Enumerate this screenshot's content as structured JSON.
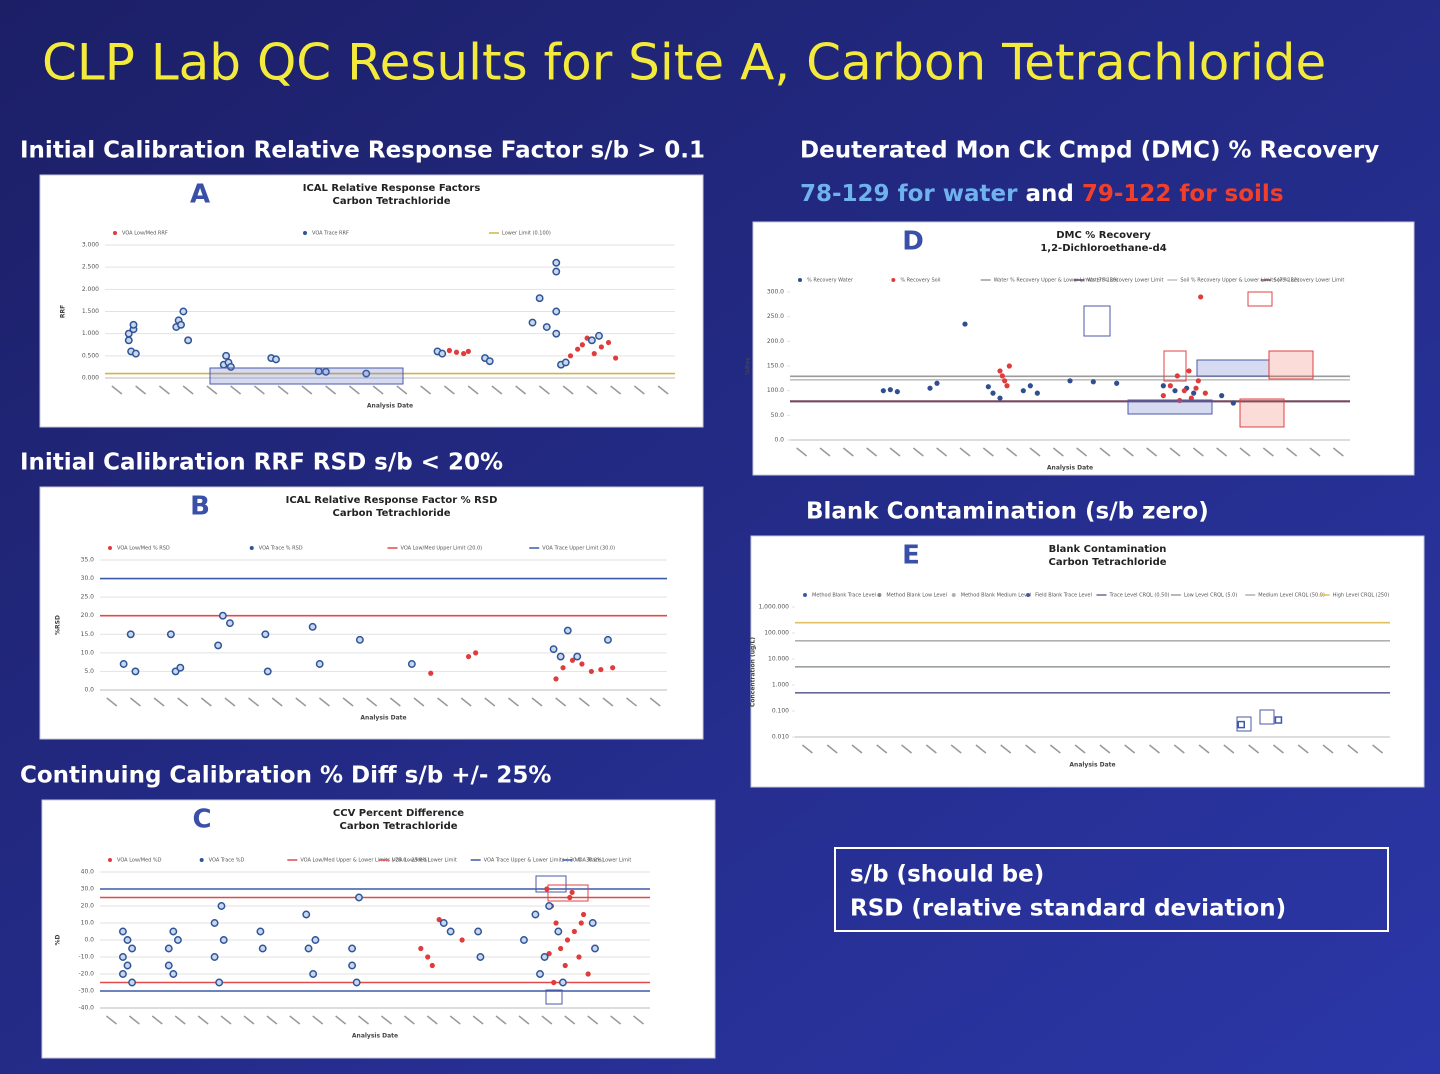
{
  "title": "CLP Lab QC Results for Site A, Carbon Tetrachloride",
  "panels": [
    {
      "heading": "Initial Calibration Relative Response Factor s/b > 0.1",
      "letter": "A",
      "chart_data": {
        "type": "scatter",
        "title": "ICAL Relative Response Factors",
        "subtitle": "Carbon Tetrachloride",
        "x_label": "Analysis Date",
        "y_label": "RRF",
        "xlim": [
          0,
          24
        ],
        "ylim": [
          0,
          3
        ],
        "yticks": [
          {
            "value": 0,
            "label": "0.000"
          },
          {
            "value": 0.5,
            "label": "0.500"
          },
          {
            "value": 1,
            "label": "1.000"
          },
          {
            "value": 1.5,
            "label": "1.500"
          },
          {
            "value": 2,
            "label": "2.000"
          },
          {
            "value": 2.5,
            "label": "2.500"
          },
          {
            "value": 3,
            "label": "3.000"
          }
        ],
        "grid": true,
        "series": [
          {
            "name": "VOA Low/Med RRF",
            "color": "#e03c3c",
            "marker": "dot",
            "x": [
              14.5,
              14.8,
              15.1,
              15.3,
              19.6,
              19.9,
              20.1,
              20.3,
              20.6,
              20.9,
              21.2,
              21.5
            ],
            "values": [
              0.62,
              0.58,
              0.55,
              0.6,
              0.5,
              0.65,
              0.75,
              0.9,
              0.55,
              0.7,
              0.8,
              0.45
            ]
          },
          {
            "name": "VOA Trace RRF",
            "color": "#2f5597",
            "marker": "ring",
            "x": [
              1,
              1.1,
              1.2,
              1.3,
              1,
              1.2,
              3,
              3.1,
              3.2,
              3.3,
              3.5,
              5,
              5.1,
              5.2,
              5.3,
              7,
              7.2,
              9,
              9.3,
              11,
              14,
              14.2,
              16,
              16.2,
              18,
              18.3,
              18.6,
              19,
              19,
              19,
              19,
              19.2,
              19.4,
              20.5,
              20.8
            ],
            "values": [
              1.0,
              0.6,
              1.1,
              0.55,
              0.85,
              1.2,
              1.15,
              1.3,
              1.2,
              1.5,
              0.85,
              0.3,
              0.5,
              0.35,
              0.25,
              0.45,
              0.42,
              0.15,
              0.14,
              0.1,
              0.6,
              0.55,
              0.45,
              0.38,
              1.25,
              1.8,
              1.15,
              2.4,
              2.6,
              1.5,
              1.0,
              0.3,
              0.35,
              0.85,
              0.95
            ]
          }
        ],
        "limits": [
          {
            "name": "Lower Limit (0.100)",
            "value": 0.1,
            "color": "#d4b44a"
          }
        ]
      }
    },
    {
      "heading": "Initial Calibration RRF RSD s/b < 20%",
      "letter": "B",
      "chart_data": {
        "type": "scatter",
        "title": "ICAL Relative Response Factor % RSD",
        "subtitle": "Carbon Tetrachloride",
        "x_label": "Analysis Date",
        "y_label": "%RSD",
        "xlim": [
          0,
          24
        ],
        "ylim": [
          0,
          35
        ],
        "yticks": [
          {
            "value": 0,
            "label": "0.0"
          },
          {
            "value": 5,
            "label": "5.0"
          },
          {
            "value": 10,
            "label": "10.0"
          },
          {
            "value": 15,
            "label": "15.0"
          },
          {
            "value": 20,
            "label": "20.0"
          },
          {
            "value": 25,
            "label": "25.0"
          },
          {
            "value": 30,
            "label": "30.0"
          },
          {
            "value": 35,
            "label": "35.0"
          }
        ],
        "grid": true,
        "series": [
          {
            "name": "VOA Low/Med % RSD",
            "color": "#e03c3c",
            "marker": "dot",
            "x": [
              14,
              15.6,
              15.9,
              19.3,
              19.6,
              20,
              20.4,
              20.8,
              21.2,
              21.7
            ],
            "values": [
              4.5,
              9,
              10,
              3,
              6,
              8,
              7,
              5,
              5.5,
              6
            ]
          },
          {
            "name": "VOA Trace % RSD",
            "color": "#2f5597",
            "marker": "ring",
            "x": [
              1,
              1.3,
              1.5,
              3,
              3.2,
              3.4,
              5,
              5.2,
              5.5,
              7,
              7.1,
              9,
              9.3,
              11,
              13.2,
              19.2,
              19.5,
              19.8,
              20.2,
              21.5
            ],
            "values": [
              7,
              15,
              5,
              15,
              5,
              6,
              12,
              20,
              18,
              15,
              5,
              17,
              7,
              13.5,
              7,
              11,
              9,
              16,
              9,
              13.5
            ]
          }
        ],
        "limits": [
          {
            "name": "VOA Low/Med Upper Limit (20.0)",
            "value": 20,
            "color": "#e04a4a"
          },
          {
            "name": "VOA Trace Upper Limit (30.0)",
            "value": 30,
            "color": "#3d5aa8"
          }
        ]
      }
    },
    {
      "heading": "Continuing Calibration % Diff s/b +/- 25%",
      "letter": "C",
      "chart_data": {
        "type": "scatter",
        "title": "CCV Percent Difference",
        "subtitle": "Carbon Tetrachloride",
        "x_label": "Analysis Date",
        "y_label": "%D",
        "xlim": [
          0,
          24
        ],
        "ylim": [
          -40,
          40
        ],
        "yticks": [
          {
            "value": -40,
            "label": "-40.0"
          },
          {
            "value": -30,
            "label": "-30.0"
          },
          {
            "value": -20,
            "label": "-20.0"
          },
          {
            "value": -10,
            "label": "-10.0"
          },
          {
            "value": 0,
            "label": "0.0"
          },
          {
            "value": 10,
            "label": "10.0"
          },
          {
            "value": 20,
            "label": "20.0"
          },
          {
            "value": 30,
            "label": "30.0"
          },
          {
            "value": 40,
            "label": "40.0"
          }
        ],
        "grid": true,
        "series": [
          {
            "name": "VOA Low/Med %D",
            "color": "#e03c3c",
            "marker": "dot",
            "x": [
              14,
              14.3,
              14.5,
              14.8,
              15.8,
              19.5,
              19.7,
              19.9,
              20.1,
              20.3,
              20.5,
              20.7,
              20.9,
              21.1,
              21.3,
              19.8,
              20.4,
              21,
              20.6,
              19.6
            ],
            "values": [
              -5,
              -10,
              -15,
              12,
              0,
              30,
              20,
              10,
              -5,
              -15,
              25,
              5,
              -10,
              15,
              -20,
              -25,
              0,
              10,
              28,
              -8
            ]
          },
          {
            "name": "VOA Trace %D",
            "color": "#2f5597",
            "marker": "ring",
            "x": [
              1,
              1,
              1,
              1.2,
              1.2,
              1.4,
              1.4,
              3,
              3,
              3.2,
              3.2,
              3.4,
              5,
              5,
              5.2,
              5.3,
              5.4,
              7,
              7.1,
              9,
              9.1,
              9.3,
              9.4,
              11,
              11,
              11.2,
              11.3,
              15,
              15.3,
              16.5,
              16.6,
              18.5,
              19,
              19.2,
              19.4,
              19.6,
              20,
              20.2,
              21.5,
              21.6
            ],
            "values": [
              -10,
              -20,
              5,
              -15,
              0,
              -25,
              -5,
              -5,
              -15,
              5,
              -20,
              0,
              10,
              -10,
              -25,
              20,
              0,
              5,
              -5,
              15,
              -5,
              -20,
              0,
              -5,
              -15,
              -25,
              25,
              10,
              5,
              5,
              -10,
              0,
              15,
              -20,
              -10,
              20,
              5,
              -25,
              10,
              -5
            ]
          }
        ],
        "limits": [
          {
            "name": "VOA Low/Med Upper & Lower Limits (-25.0 - 25.0%)",
            "value": 25,
            "color": "#e04a4a"
          },
          {
            "name": "VOA Low/Med Lower Limit",
            "value": -25,
            "color": "#e04a4a"
          },
          {
            "name": "VOA Trace Upper & Lower Limits (-30.0 - 30.0%)",
            "value": 30,
            "color": "#3d5aa8"
          },
          {
            "name": "VOA Trace Lower Limit",
            "value": -30,
            "color": "#3d5aa8"
          }
        ]
      }
    },
    {
      "heading": "Deuterated Mon Ck Cmpd (DMC) % Recovery",
      "note_water": "78-129 for water",
      "note_and": "and",
      "note_soil": "79-122 for soils",
      "letter": "D",
      "chart_data": {
        "type": "scatter",
        "title": "DMC % Recovery",
        "subtitle": "1,2-Dichloroethane-d4",
        "x_label": "Analysis Date",
        "y_label": "%Rec",
        "xlim": [
          0,
          24
        ],
        "ylim": [
          0,
          300
        ],
        "yticks": [
          {
            "value": 0,
            "label": "0.0"
          },
          {
            "value": 50,
            "label": "50.0"
          },
          {
            "value": 100,
            "label": "100.0"
          },
          {
            "value": 150,
            "label": "150.0"
          },
          {
            "value": 200,
            "label": "200.0"
          },
          {
            "value": 250,
            "label": "250.0"
          },
          {
            "value": 300,
            "label": "300.0"
          }
        ],
        "grid": false,
        "series": [
          {
            "name": "% Recovery Water",
            "color": "#2f4f8f",
            "marker": "dot",
            "x": [
              4,
              4.3,
              4.6,
              6,
              6.3,
              8.5,
              8.7,
              9,
              10,
              10.3,
              10.6,
              12,
              13,
              14,
              16,
              16.5,
              17,
              17.3,
              18.5,
              19,
              7.5
            ],
            "values": [
              100,
              102,
              98,
              105,
              115,
              108,
              95,
              85,
              100,
              110,
              95,
              120,
              118,
              115,
              110,
              100,
              105,
              95,
              90,
              75,
              235
            ]
          },
          {
            "name": "% Recovery Soil",
            "color": "#e03c3c",
            "marker": "dot",
            "x": [
              9,
              9.1,
              9.2,
              9.3,
              9.4,
              16,
              16.3,
              16.6,
              16.9,
              17.2,
              17.5,
              17.8,
              17.1,
              16.7,
              17.4,
              17.6
            ],
            "values": [
              140,
              130,
              120,
              110,
              150,
              90,
              110,
              130,
              100,
              85,
              120,
              95,
              140,
              80,
              105,
              290
            ]
          }
        ],
        "limits": [
          {
            "name": "Water % Recovery Upper & Lower Limits (78-129)",
            "value": 129,
            "color": "#9a9a9a"
          },
          {
            "name": "Water % Recovery Lower Limit",
            "value": 78,
            "color": "#5a3a6a"
          },
          {
            "name": "Soil % Recovery Upper & Lower Limits (79-122)",
            "value": 122,
            "color": "#c0c0c0"
          },
          {
            "name": "Soil % Recovery Lower Limit",
            "value": 79,
            "color": "#7a4a5a"
          }
        ]
      }
    },
    {
      "heading": "Blank Contamination (s/b zero)",
      "letter": "E",
      "chart_data": {
        "type": "scatter",
        "title": "Blank Contamination",
        "subtitle": "Carbon Tetrachloride",
        "x_label": "Analysis Date",
        "y_label": "Concentration (ug/L)",
        "log_scale": true,
        "xlim": [
          0,
          24
        ],
        "ylim": [
          0.01,
          1000
        ],
        "yticks": [
          {
            "value": 0.01,
            "label": "0.010"
          },
          {
            "value": 0.1,
            "label": "0.100"
          },
          {
            "value": 1,
            "label": "1.000"
          },
          {
            "value": 10,
            "label": "10.000"
          },
          {
            "value": 100,
            "label": "100.000"
          },
          {
            "value": 1000,
            "label": "1,000.000"
          }
        ],
        "grid": false,
        "series": [
          {
            "name": "Method Blank Trace Level",
            "color": "#3d5aa8",
            "marker": "square",
            "x": [
              18,
              19.5
            ],
            "values": [
              0.03,
              0.045
            ]
          },
          {
            "name": "Method Blank Low Level",
            "color": "#8a8a8a",
            "marker": "square",
            "x": [],
            "values": []
          },
          {
            "name": "Method Blank Medium Level",
            "color": "#b0b0b0",
            "marker": "square",
            "x": [],
            "values": []
          },
          {
            "name": "Field Blank Trace Level",
            "color": "#3d5aa8",
            "marker": "dot",
            "x": [],
            "values": []
          }
        ],
        "limits": [
          {
            "name": "Trace Level CRQL (0.50)",
            "value": 0.5,
            "color": "#6a6a9a"
          },
          {
            "name": "Low Level CRQL (5.0)",
            "value": 5,
            "color": "#9aa0a0"
          },
          {
            "name": "Medium Level CRQL (50.0)",
            "value": 50,
            "color": "#b0b0b0"
          },
          {
            "name": "High Level CRQL (250)",
            "value": 250,
            "color": "#e0c060"
          }
        ]
      }
    }
  ],
  "note": {
    "line1": "s/b (should be)",
    "line2": "RSD (relative standard deviation)"
  }
}
